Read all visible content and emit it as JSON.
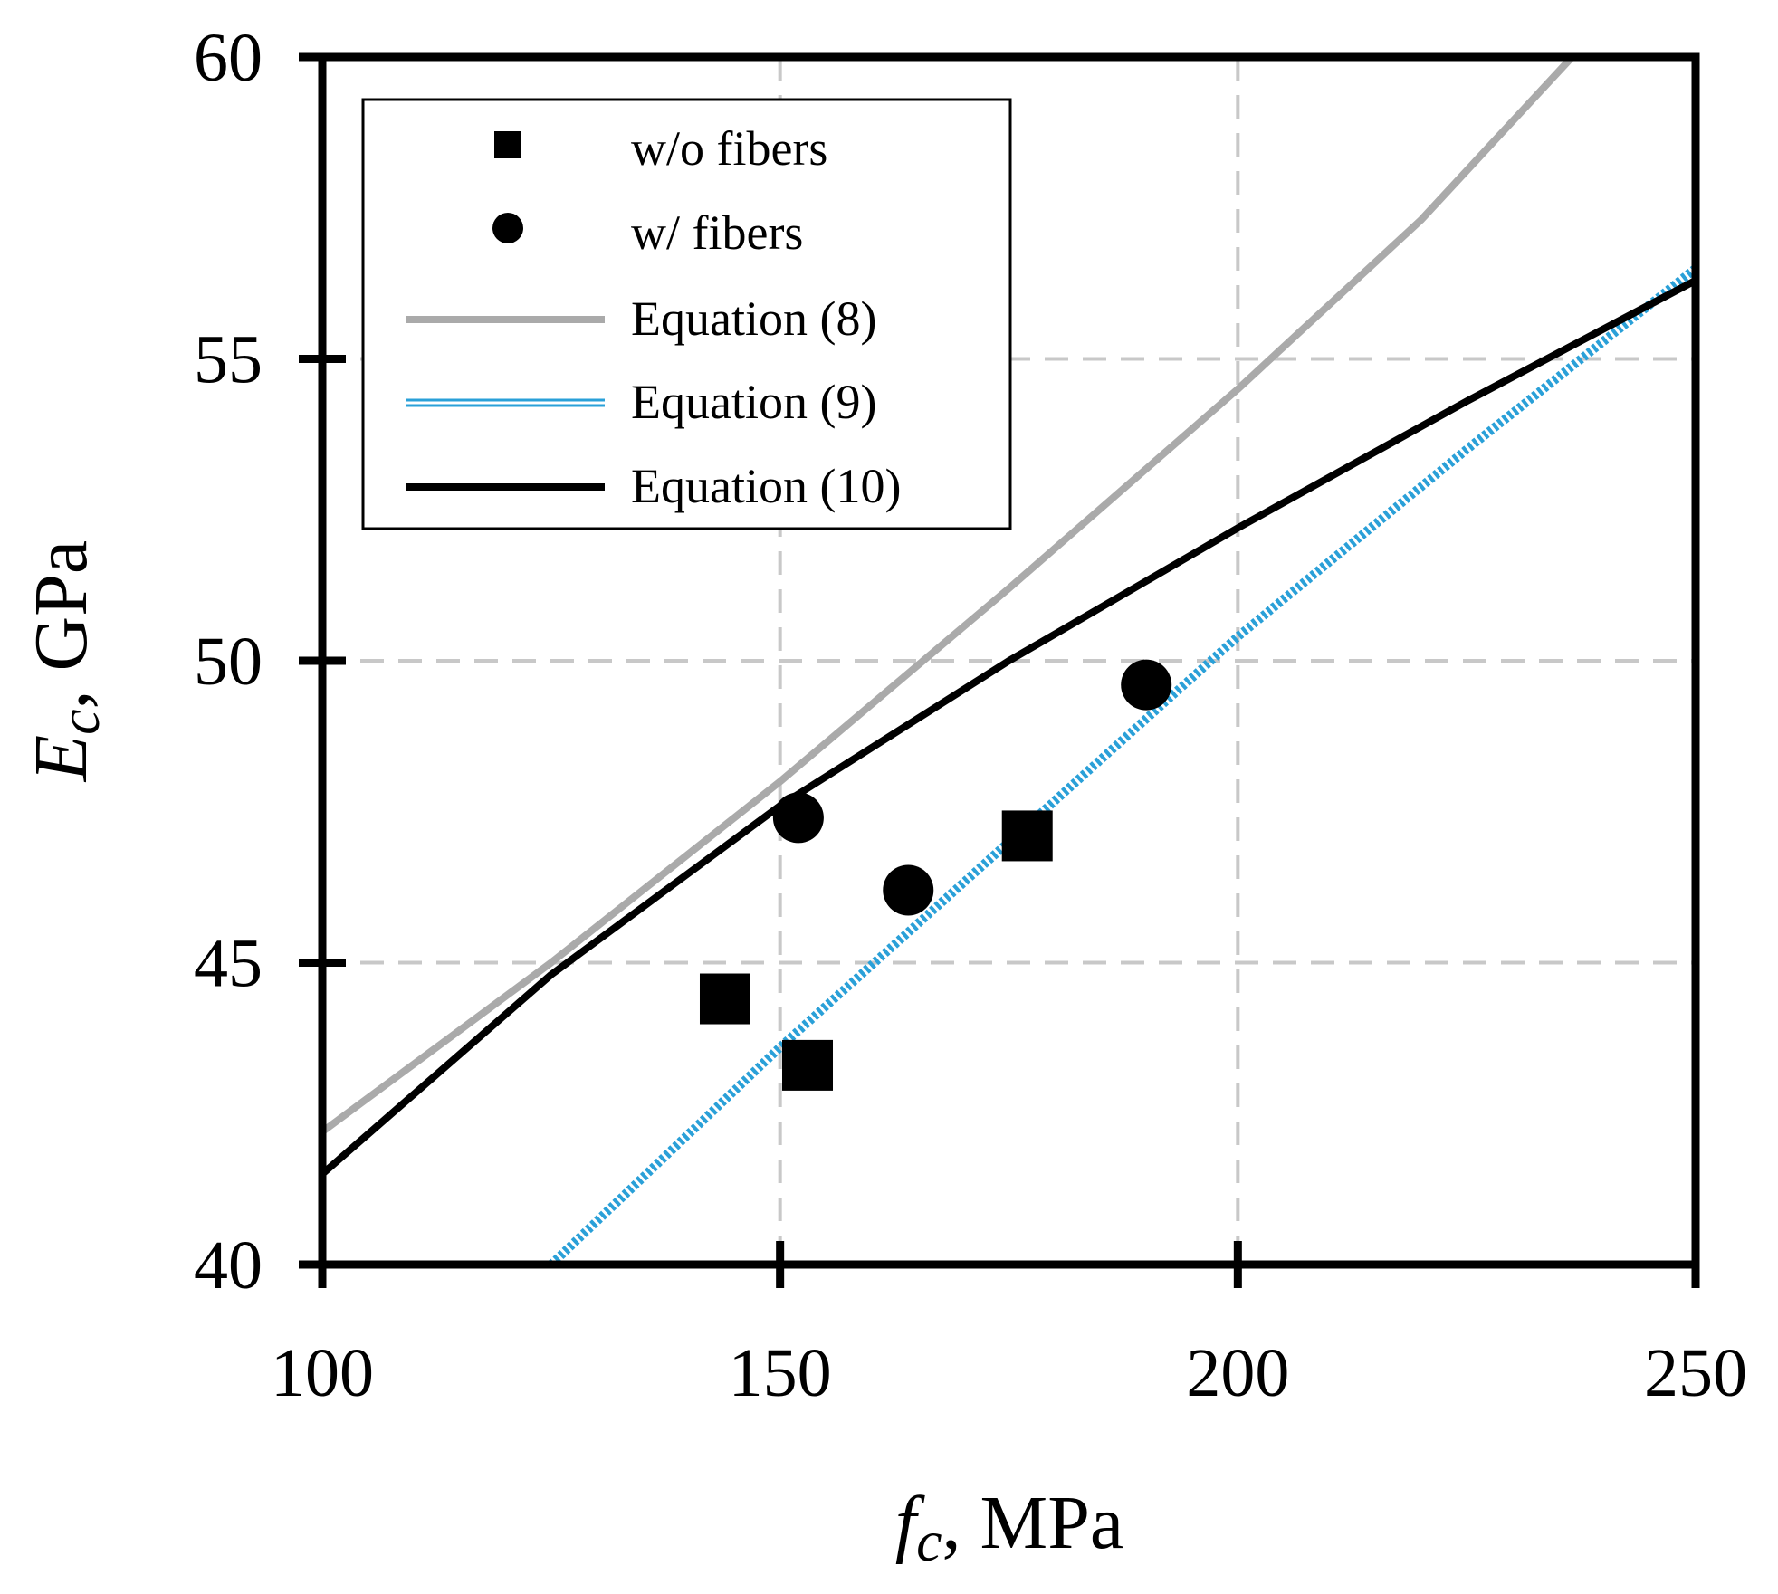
{
  "chart_data": {
    "type": "scatter",
    "title": "",
    "xlabel": {
      "symbol": "f",
      "subscript": "c",
      "unit": ", MPa"
    },
    "ylabel": {
      "symbol": "E",
      "subscript": "c",
      "unit": ", GPa"
    },
    "xlim": [
      100,
      250
    ],
    "ylim": [
      40,
      60
    ],
    "xticks": [
      100,
      150,
      200,
      250
    ],
    "yticks": [
      40,
      45,
      50,
      55,
      60
    ],
    "grid": true,
    "legend_position": "top-left",
    "series": [
      {
        "name": "w/o fibers",
        "kind": "markers",
        "marker": "square",
        "color": "#000000",
        "points": [
          [
            144,
            44.4
          ],
          [
            153,
            43.3
          ],
          [
            177,
            47.1
          ]
        ]
      },
      {
        "name": "w/ fibers",
        "kind": "markers",
        "marker": "circle",
        "color": "#000000",
        "points": [
          [
            152,
            47.4
          ],
          [
            164,
            46.2
          ],
          [
            190,
            49.6
          ]
        ]
      },
      {
        "name": "Equation (8)",
        "kind": "line",
        "color": "#aaaaaa",
        "points": [
          [
            100,
            42.2
          ],
          [
            125,
            45.0
          ],
          [
            150,
            48.0
          ],
          [
            175,
            51.2
          ],
          [
            200,
            54.5
          ],
          [
            220,
            57.3
          ],
          [
            236.5,
            60.0
          ]
        ]
      },
      {
        "name": "Equation (9)",
        "kind": "line",
        "color": "#2aa0d8",
        "points": [
          [
            125,
            40.0
          ],
          [
            150,
            43.6
          ],
          [
            175,
            47.0
          ],
          [
            200,
            50.4
          ],
          [
            225,
            53.5
          ],
          [
            250,
            56.5
          ]
        ]
      },
      {
        "name": "Equation (10)",
        "kind": "line",
        "color": "#000000",
        "points": [
          [
            100,
            41.5
          ],
          [
            125,
            44.8
          ],
          [
            150,
            47.6
          ],
          [
            175,
            50.0
          ],
          [
            200,
            52.2
          ],
          [
            225,
            54.3
          ],
          [
            250,
            56.3
          ]
        ]
      }
    ]
  }
}
